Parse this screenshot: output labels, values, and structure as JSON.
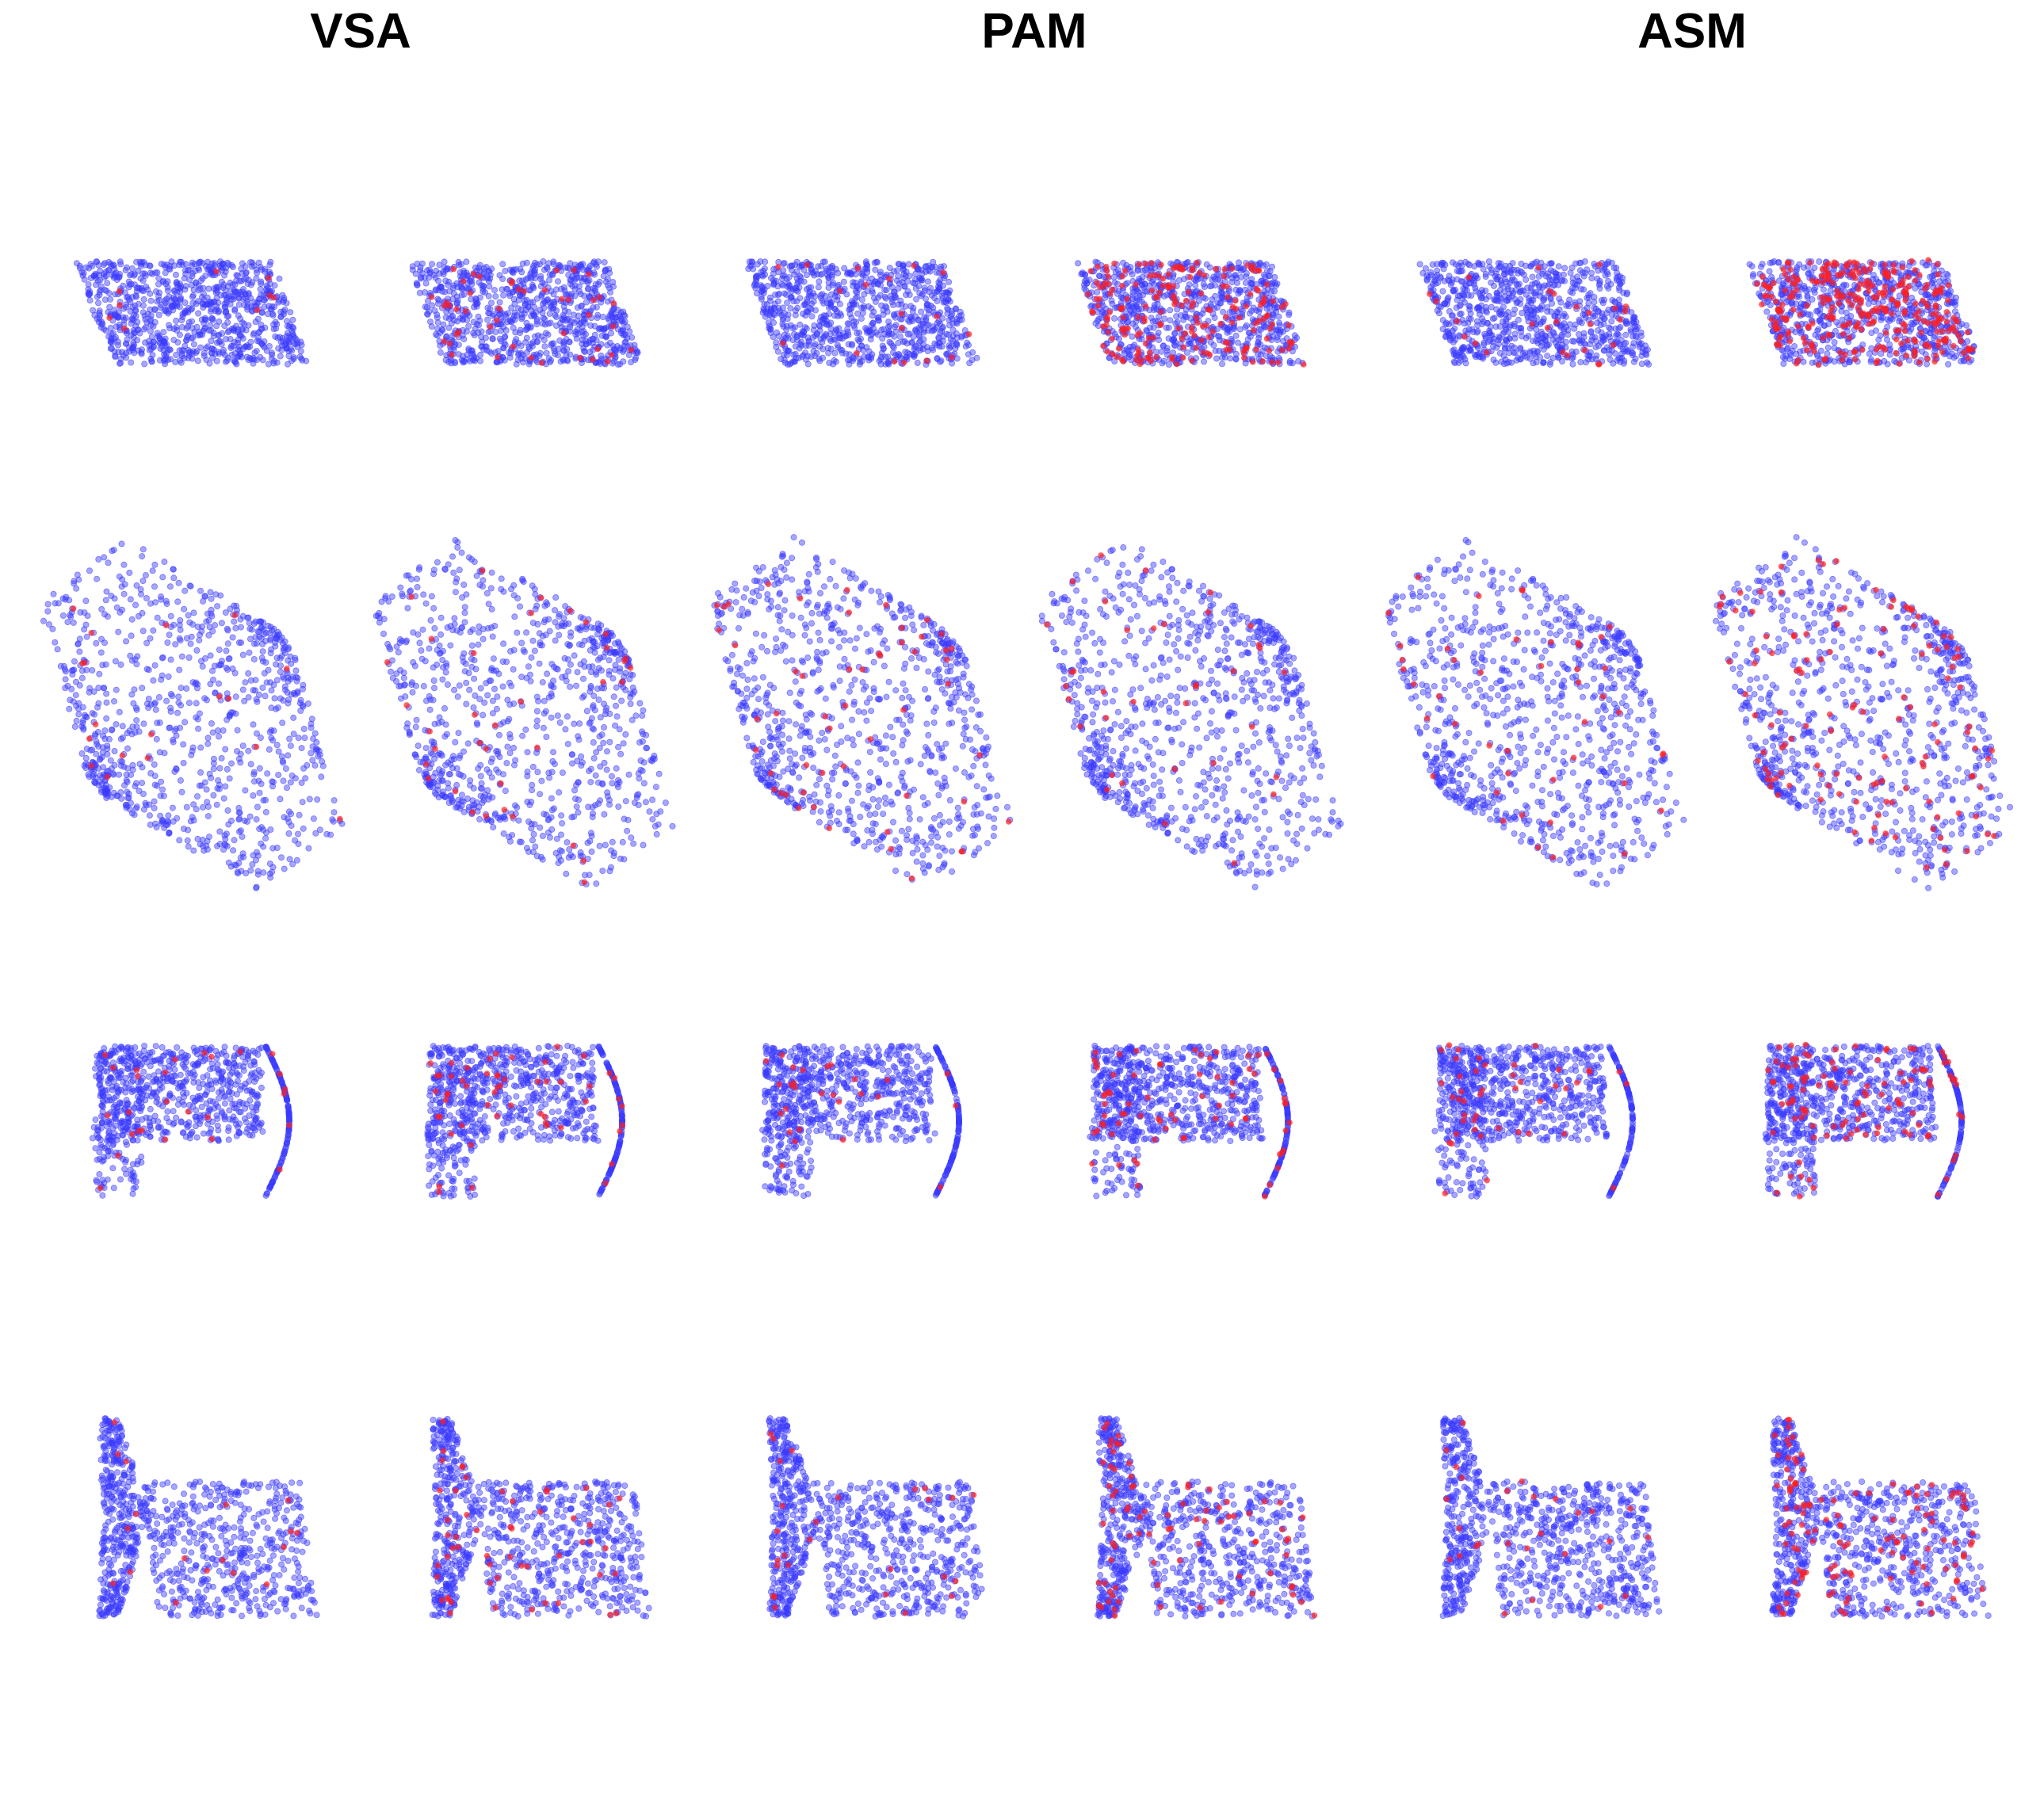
{
  "columns": [
    {
      "title": "VSA"
    },
    {
      "title": "PAM"
    },
    {
      "title": "ASM"
    }
  ],
  "rows": [
    {
      "shape": "thin-slab",
      "red_fraction": [
        0.01,
        0.05,
        0.02,
        0.22,
        0.03,
        0.35
      ]
    },
    {
      "shape": "hexagon",
      "red_fraction": [
        0.02,
        0.04,
        0.06,
        0.04,
        0.05,
        0.14
      ]
    },
    {
      "shape": "table",
      "red_fraction": [
        0.03,
        0.06,
        0.03,
        0.08,
        0.05,
        0.12
      ]
    },
    {
      "shape": "chair",
      "red_fraction": [
        0.02,
        0.06,
        0.03,
        0.09,
        0.03,
        0.14
      ]
    }
  ],
  "colors": {
    "point": "#3a3aff",
    "highlight": "#ff2020",
    "background": "#ffffff"
  }
}
